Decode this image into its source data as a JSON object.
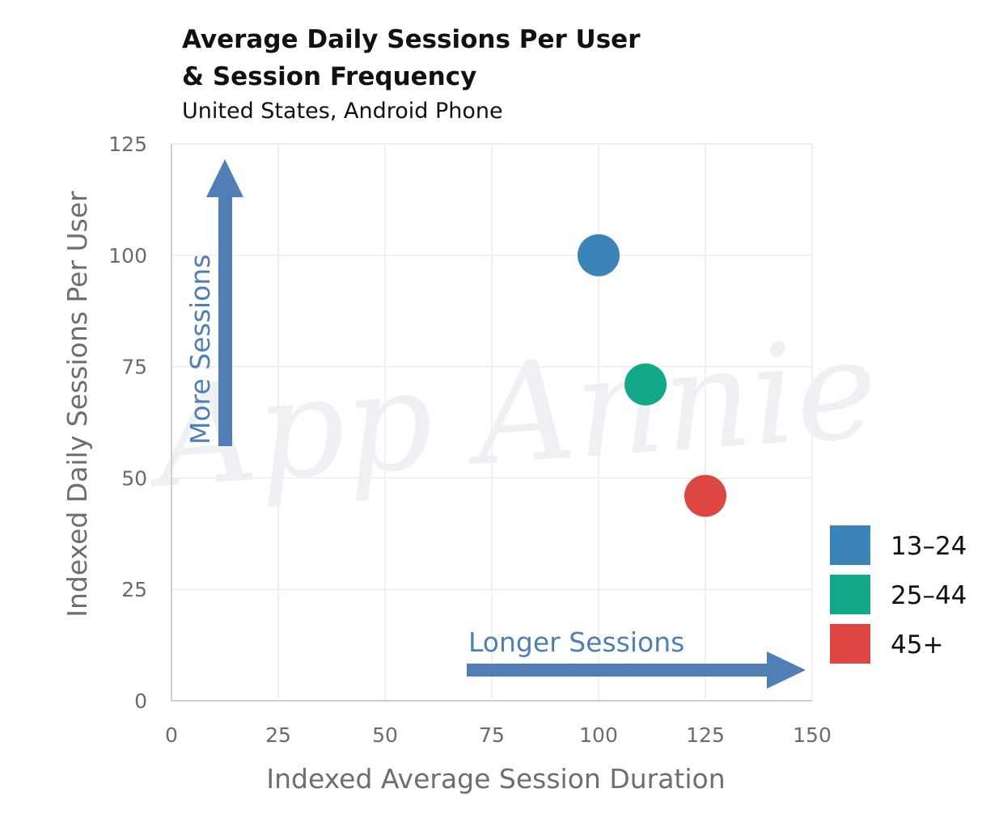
{
  "watermark": "App Annie",
  "chart_data": {
    "type": "scatter",
    "title_lines": [
      "Average Daily Sessions Per User",
      "& Session Frequency"
    ],
    "subtitle": "United States, Android Phone",
    "xlabel": "Indexed Average Session Duration",
    "ylabel": "Indexed Daily Sessions Per User",
    "xlim": [
      0,
      150
    ],
    "ylim": [
      0,
      125
    ],
    "x_ticks": [
      0,
      25,
      50,
      75,
      100,
      125,
      150
    ],
    "y_ticks": [
      0,
      25,
      50,
      75,
      100,
      125
    ],
    "grid": true,
    "legend_position": "right",
    "annotations": {
      "vertical_arrow": "More Sessions",
      "horizontal_arrow": "Longer Sessions"
    },
    "annotation_color": "#4f7fb4",
    "series": [
      {
        "name": "13–24",
        "color": "#3b84b7",
        "points": [
          {
            "x": 100,
            "y": 100
          }
        ]
      },
      {
        "name": "25–44",
        "color": "#13a88a",
        "points": [
          {
            "x": 111,
            "y": 71
          }
        ]
      },
      {
        "name": "45+",
        "color": "#dd4641",
        "points": [
          {
            "x": 125,
            "y": 46
          }
        ]
      }
    ]
  }
}
